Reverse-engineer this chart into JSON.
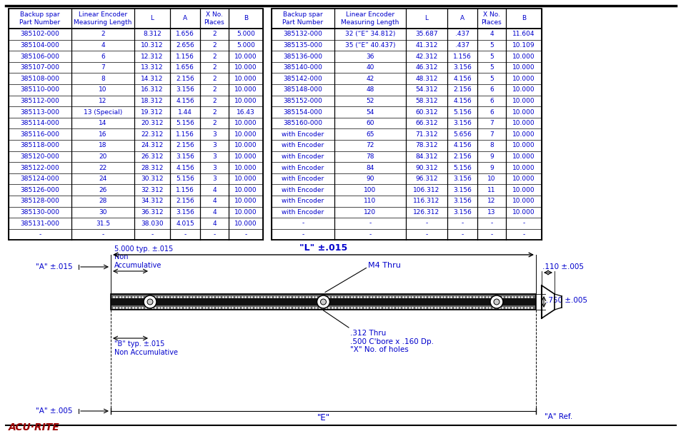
{
  "bg_color": "#ffffff",
  "text_color": "#0000CC",
  "line_color": "#000000",
  "table_left_headers": [
    "Backup spar\nPart Number",
    "Linear Encoder\nMeasuring Length",
    "L",
    "A",
    "X No.\nPlaces",
    "B"
  ],
  "table_left_rows": [
    [
      "385102-000",
      "2",
      "8.312",
      "1.656",
      "2",
      "5.000"
    ],
    [
      "385104-000",
      "4",
      "10.312",
      "2.656",
      "2",
      "5.000"
    ],
    [
      "385106-000",
      "6",
      "12.312",
      "1.156",
      "2",
      "10.000"
    ],
    [
      "385107-000",
      "7",
      "13.312",
      "1.656",
      "2",
      "10.000"
    ],
    [
      "385108-000",
      "8",
      "14.312",
      "2.156",
      "2",
      "10.000"
    ],
    [
      "385110-000",
      "10",
      "16.312",
      "3.156",
      "2",
      "10.000"
    ],
    [
      "385112-000",
      "12",
      "18.312",
      "4.156",
      "2",
      "10.000"
    ],
    [
      "385113-000",
      "13 (Special)",
      "19.312",
      "1.44",
      "2",
      "16.43"
    ],
    [
      "385114-000",
      "14",
      "20.312",
      "5.156",
      "2",
      "10.000"
    ],
    [
      "385116-000",
      "16",
      "22.312",
      "1.156",
      "3",
      "10.000"
    ],
    [
      "385118-000",
      "18",
      "24.312",
      "2.156",
      "3",
      "10.000"
    ],
    [
      "385120-000",
      "20",
      "26.312",
      "3.156",
      "3",
      "10.000"
    ],
    [
      "385122-000",
      "22",
      "28.312",
      "4.156",
      "3",
      "10.000"
    ],
    [
      "385124-000",
      "24",
      "30.312",
      "5.156",
      "3",
      "10.000"
    ],
    [
      "385126-000",
      "26",
      "32.312",
      "1.156",
      "4",
      "10.000"
    ],
    [
      "385128-000",
      "28",
      "34.312",
      "2.156",
      "4",
      "10.000"
    ],
    [
      "385130-000",
      "30",
      "36.312",
      "3.156",
      "4",
      "10.000"
    ],
    [
      "385131-000",
      "31.5",
      "38.030",
      "4.015",
      "4",
      "10.000"
    ],
    [
      "-",
      "-",
      "-",
      "-",
      "-",
      "-"
    ]
  ],
  "table_right_headers": [
    "Backup spar\nPart Number",
    "Linear Encoder\nMeasuring Length",
    "L",
    "A",
    "X No.\nPlaces",
    "B"
  ],
  "table_right_rows": [
    [
      "385132-000",
      "32 (“E” 34.812)",
      "35.687",
      ".437",
      "4",
      "11.604"
    ],
    [
      "385135-000",
      "35 (“E” 40.437)",
      "41.312",
      ".437",
      "5",
      "10.109"
    ],
    [
      "385136-000",
      "36",
      "42.312",
      "1.156",
      "5",
      "10.000"
    ],
    [
      "385140-000",
      "40",
      "46.312",
      "3.156",
      "5",
      "10.000"
    ],
    [
      "385142-000",
      "42",
      "48.312",
      "4.156",
      "5",
      "10.000"
    ],
    [
      "385148-000",
      "48",
      "54.312",
      "2.156",
      "6",
      "10.000"
    ],
    [
      "385152-000",
      "52",
      "58.312",
      "4.156",
      "6",
      "10.000"
    ],
    [
      "385154-000",
      "54",
      "60.312",
      "5.156",
      "6",
      "10.000"
    ],
    [
      "385160-000",
      "60",
      "66.312",
      "3.156",
      "7",
      "10.000"
    ],
    [
      "with Encoder",
      "65",
      "71.312",
      "5.656",
      "7",
      "10.000"
    ],
    [
      "with Encoder",
      "72",
      "78.312",
      "4.156",
      "8",
      "10.000"
    ],
    [
      "with Encoder",
      "78",
      "84.312",
      "2.156",
      "9",
      "10.000"
    ],
    [
      "with Encoder",
      "84",
      "90.312",
      "5.156",
      "9",
      "10.000"
    ],
    [
      "with Encoder",
      "90",
      "96.312",
      "3.156",
      "10",
      "10.000"
    ],
    [
      "with Encoder",
      "100",
      "106.312",
      "3.156",
      "11",
      "10.000"
    ],
    [
      "with Encoder",
      "110",
      "116.312",
      "3.156",
      "12",
      "10.000"
    ],
    [
      "with Encoder",
      "120",
      "126.312",
      "3.156",
      "13",
      "10.000"
    ],
    [
      "-",
      "-",
      "-",
      "-",
      "-",
      "-"
    ],
    [
      "-",
      "-",
      "-",
      "-",
      "-",
      "-"
    ]
  ],
  "acu_rite_text": "ACU·RITE",
  "diagram_labels": {
    "L_label": "\"L\" ±.015",
    "A_label": "\"A\" ±.015",
    "A005_label": "\"A\" ±.005",
    "B_label": "\"B\" typ. ±.015\nNon Accumulative",
    "spacing_label": "5.000 typ. ±.015\nNon\nAccumulative",
    "m4_label": "M4 Thru",
    "hole_label": ".312 Thru\n.500 C'bore x .160 Dp.\n\"X\" No. of holes",
    "E_label": "\"E\"",
    "Aref_label": "\"A\" Ref.",
    "dim_110": ".110 ±.005",
    "dim_750": ".750 ±.005"
  }
}
